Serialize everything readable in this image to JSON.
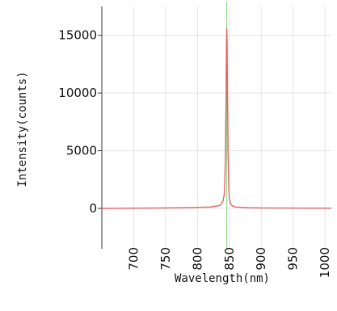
{
  "chart_data": {
    "type": "line",
    "title": "",
    "xlabel": "Wavelength(nm)",
    "ylabel": "Intensity(counts)",
    "xlim": [
      650,
      1010
    ],
    "ylim": [
      -3500,
      17500
    ],
    "x_ticks": [
      700,
      750,
      800,
      850,
      900,
      950,
      1000
    ],
    "y_ticks": [
      0,
      5000,
      10000,
      15000
    ],
    "x_tick_labels": [
      "700",
      "750",
      "800",
      "850",
      "900",
      "950",
      "1000"
    ],
    "y_tick_labels": [
      "0",
      "5000",
      "10000",
      "15000"
    ],
    "grid": true,
    "legend": "none",
    "marker_line_x": 846,
    "series": [
      {
        "color": "#e06464",
        "x": [
          650,
          700,
          750,
          790,
          820,
          835,
          840,
          842,
          843,
          844,
          845,
          845.5,
          846,
          846.5,
          847,
          848,
          849,
          850,
          852,
          855,
          860,
          880,
          900,
          950,
          1000,
          1010
        ],
        "y": [
          0,
          20,
          40,
          80,
          120,
          250,
          600,
          1200,
          2500,
          5000,
          10000,
          14000,
          15600,
          14500,
          10500,
          5000,
          2000,
          900,
          400,
          200,
          120,
          60,
          40,
          30,
          20,
          20
        ]
      }
    ]
  },
  "colors": {
    "grid": "#e4e4e4",
    "axis": "#333333",
    "marker_line": "#7fd67f",
    "trace": "#e06464",
    "background": "#ffffff"
  }
}
